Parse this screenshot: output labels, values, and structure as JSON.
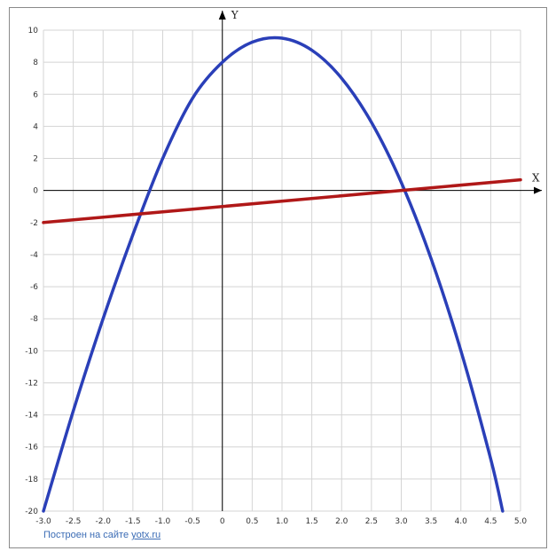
{
  "chart_data": {
    "type": "line",
    "xlim": [
      -3.0,
      5.0
    ],
    "ylim": [
      -20,
      10
    ],
    "xticks": [
      -3.0,
      -2.5,
      -2.0,
      -1.5,
      -1.0,
      -0.5,
      0,
      0.5,
      1.0,
      1.5,
      2.0,
      2.5,
      3.0,
      3.5,
      4.0,
      4.5,
      5.0
    ],
    "xtick_labels": [
      "-3.0",
      "-2.5",
      "-2.0",
      "-1.5",
      "-1.0",
      "-0.5",
      "0",
      "0.5",
      "1.0",
      "1.5",
      "2.0",
      "2.5",
      "3.0",
      "3.5",
      "4.0",
      "4.5",
      "5.0"
    ],
    "yticks": [
      -20,
      -18,
      -16,
      -14,
      -12,
      -10,
      -8,
      -6,
      -4,
      -2,
      0,
      2,
      4,
      6,
      8,
      10
    ],
    "ytick_labels": [
      "-20",
      "-18",
      "-16",
      "-14",
      "-12",
      "-10",
      "-8",
      "-6",
      "-4",
      "-2",
      "0",
      "2",
      "4",
      "6",
      "8",
      "10"
    ],
    "xlabel": "X",
    "ylabel": "Y",
    "grid": true,
    "series": [
      {
        "color": "#2a3fb8",
        "x": [
          -3.0,
          -2.5,
          -2.0,
          -1.5,
          -1.0,
          -0.5,
          0,
          0.5,
          1.0,
          1.5,
          2.0,
          2.5,
          3.0,
          3.5,
          4.0,
          4.5,
          4.7
        ],
        "y": [
          -20.0,
          -13.75,
          -8.0,
          -2.75,
          2.0,
          5.75,
          8.0,
          9.25,
          9.5,
          8.75,
          7.0,
          4.25,
          0.5,
          -4.25,
          -10.0,
          -16.75,
          -20.0
        ]
      },
      {
        "color": "#b01818",
        "x": [
          -3.0,
          5.0
        ],
        "y": [
          -2.0,
          0.667
        ]
      }
    ]
  },
  "credit": {
    "prefix": "Построен на сайте",
    "link": "yotx.ru"
  }
}
